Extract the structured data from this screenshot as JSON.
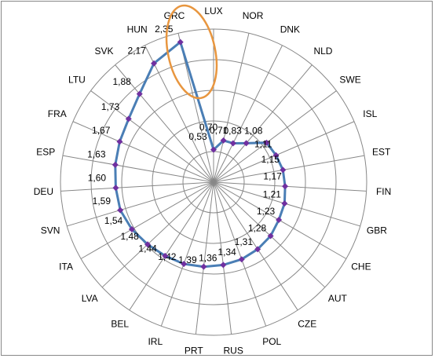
{
  "chart_data": {
    "type": "radar",
    "categories": [
      "LUX",
      "NOR",
      "DNK",
      "NLD",
      "SWE",
      "ISL",
      "EST",
      "FIN",
      "GBR",
      "CHE",
      "AUT",
      "CZE",
      "POL",
      "RUS",
      "PRT",
      "IRL",
      "BEL",
      "LVA",
      "ITA",
      "SVN",
      "DEU",
      "ESP",
      "FRA",
      "LTU",
      "SVK",
      "HUN",
      "GRC"
    ],
    "values": [
      0.53,
      0.7,
      0.71,
      0.83,
      1.08,
      1.11,
      1.15,
      1.17,
      1.21,
      1.23,
      1.28,
      1.31,
      1.34,
      1.36,
      1.39,
      1.42,
      1.44,
      1.48,
      1.54,
      1.59,
      1.6,
      1.63,
      1.67,
      1.73,
      1.88,
      2.17,
      2.35
    ],
    "value_labels": [
      "0,53",
      "0,70",
      "0,71",
      "0,83",
      "1,08",
      "1,11",
      "1,15",
      "1,17",
      "1,21",
      "1,23",
      "1,28",
      "1,31",
      "1,34",
      "1,36",
      "1,39",
      "1,42",
      "1,44",
      "1,48",
      "1,54",
      "1,59",
      "1,60",
      "1,63",
      "1,67",
      "1,73",
      "1,88",
      "2,17",
      "2,35"
    ],
    "color": "#4a7eb5",
    "marker_color": "#7030a0",
    "ylim": [
      0,
      2.5
    ],
    "yticks": [
      0.5,
      1,
      1.5,
      2,
      2.5
    ],
    "grid": true
  }
}
